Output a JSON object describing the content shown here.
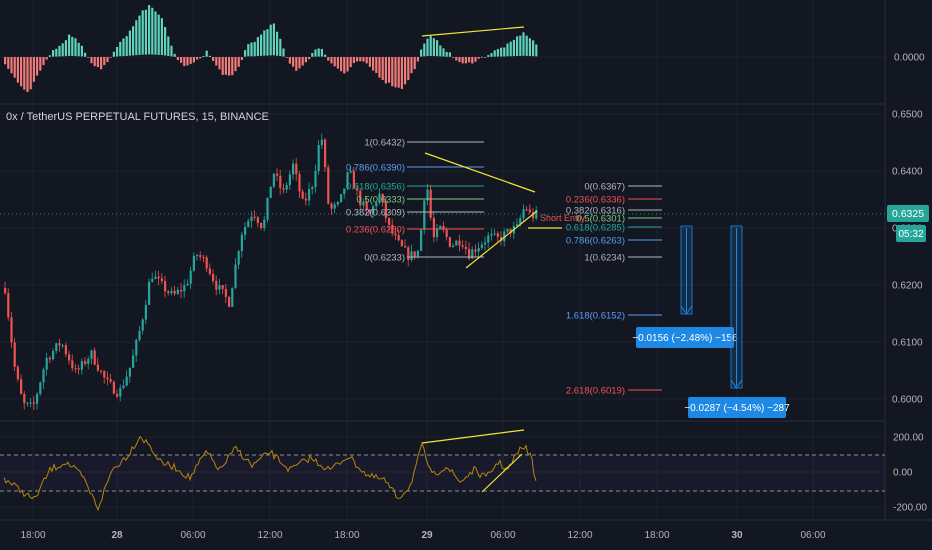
{
  "title": "0x / TetherUS PERPETUAL FUTURES, 15, BINANCE",
  "colors": {
    "background": "#131722",
    "grid": "#1e222d",
    "bull": "#26a69a",
    "bear": "#ef5350",
    "hist_bull": "#5fd3bc",
    "hist_bear": "#f27a78",
    "trendline": "#f2e536",
    "osc_line": "#b8860b",
    "measure_box": "#1e88e5",
    "price_tag": "#26a69a"
  },
  "macd_axis": {
    "labels": [
      "0.0000"
    ]
  },
  "price_axis": {
    "labels": [
      "0.6500",
      "0.6400",
      "0.6300",
      "0.6200",
      "0.6100",
      "0.6000"
    ],
    "current_price": "0.6325",
    "countdown": "05:32"
  },
  "osc_axis": {
    "labels": [
      "200.00",
      "0.00",
      "-200.00"
    ]
  },
  "time_axis": {
    "labels": [
      "18:00",
      "28",
      "06:00",
      "12:00",
      "18:00",
      "29",
      "06:00",
      "12:00",
      "18:00",
      "30",
      "06:00"
    ]
  },
  "fib_left": {
    "levels": [
      {
        "label": "1(0.6432)",
        "color": "#b2b5be"
      },
      {
        "label": "0.786(0.6390)",
        "color": "#5b9cf6"
      },
      {
        "label": "0.618(0.6356)",
        "color": "#26a69a"
      },
      {
        "label": "0.5(0.6333)",
        "color": "#81c784"
      },
      {
        "label": "0.382(0.6309)",
        "color": "#b2b5be"
      },
      {
        "label": "0.236(0.6280)",
        "color": "#ef5350"
      },
      {
        "label": "0(0.6233)",
        "color": "#b2b5be"
      }
    ]
  },
  "fib_right": {
    "levels": [
      {
        "label": "0(0.6367)",
        "color": "#b2b5be"
      },
      {
        "label": "0.236(0.6336)",
        "color": "#ef5350"
      },
      {
        "label": "0.382(0.6316)",
        "color": "#b2b5be"
      },
      {
        "label": "0.5(0.6301)",
        "color": "#81c784"
      },
      {
        "label": "0.618(0.6285)",
        "color": "#26a69a"
      },
      {
        "label": "0.786(0.6263)",
        "color": "#5b9cf6"
      },
      {
        "label": "1(0.6234)",
        "color": "#b2b5be"
      },
      {
        "label": "1.618(0.6152)",
        "color": "#5b9cf6"
      },
      {
        "label": "2.618(0.6019)",
        "color": "#ef5350"
      }
    ]
  },
  "annotation": {
    "short_entry": "Short Entry"
  },
  "measures": [
    {
      "label": "−0.0156 (−2.48%) −156"
    },
    {
      "label": "−0.0287 (−4.54%) −287"
    }
  ]
}
